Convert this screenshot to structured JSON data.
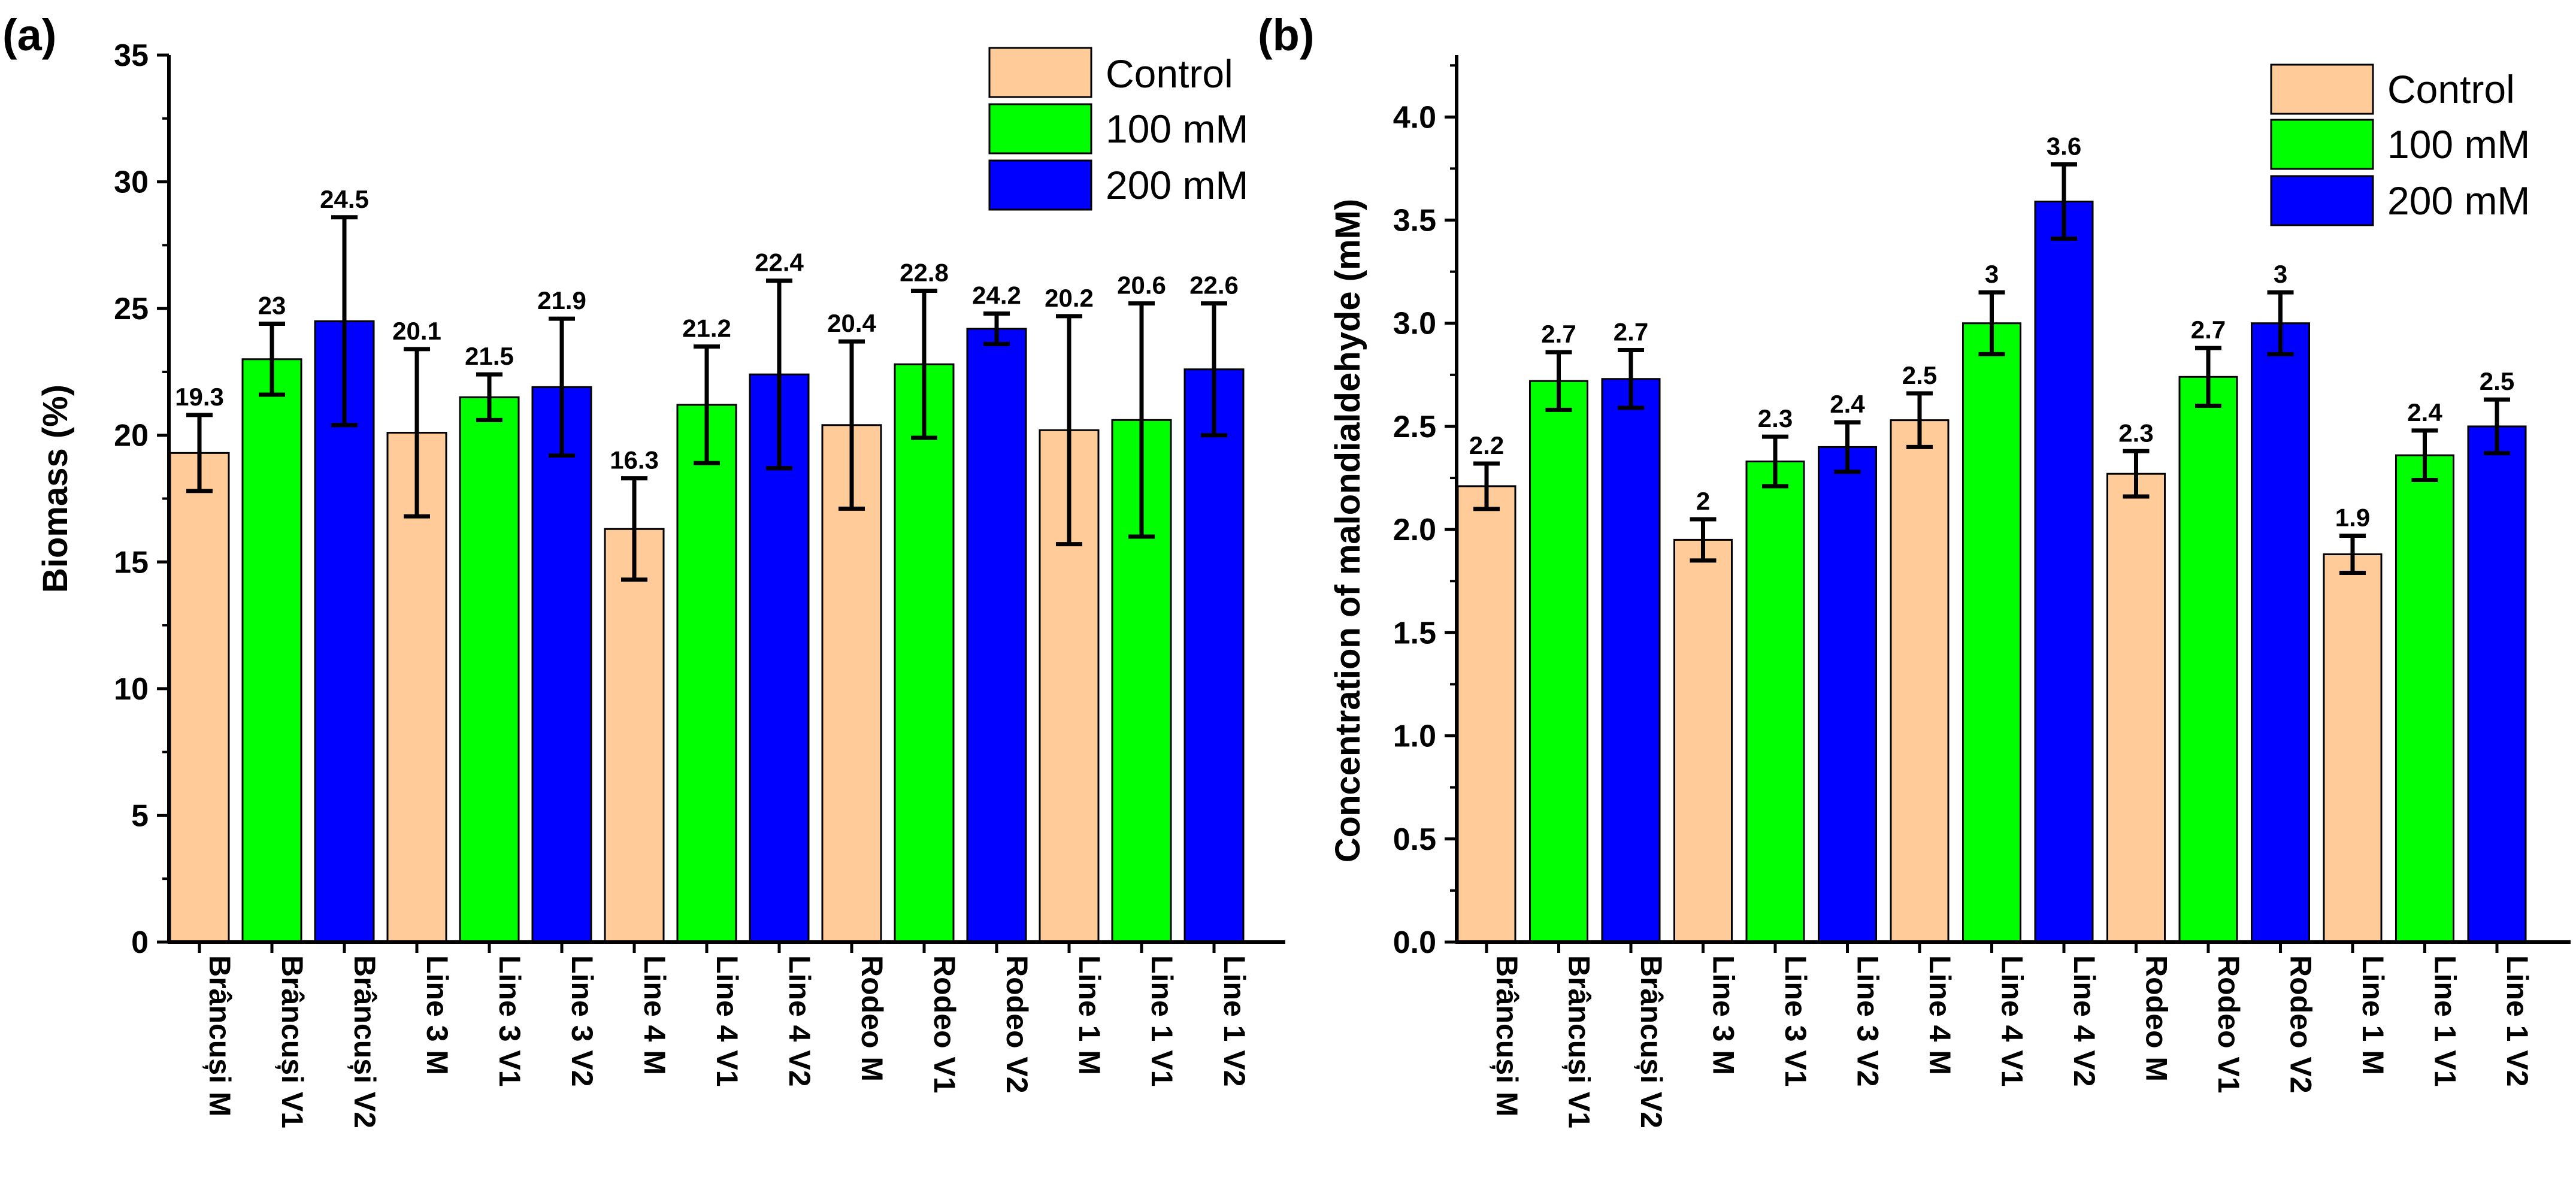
{
  "colors": {
    "control": "#FFCC99",
    "mM100": "#00FF00",
    "mM200": "#0000FF"
  },
  "chart_data": [
    {
      "panel_label": "(a)",
      "type": "bar",
      "ylabel": "Biomass (%)",
      "xlabel": "",
      "ylim": [
        0,
        35
      ],
      "yticks": [
        0,
        5,
        10,
        15,
        20,
        25,
        30,
        35
      ],
      "ytick_labels": [
        "0",
        "5",
        "10",
        "15",
        "20",
        "25",
        "30",
        "35"
      ],
      "legend": {
        "position": "top-right",
        "entries": [
          {
            "label": "Control",
            "color_key": "control"
          },
          {
            "label": "100 mM",
            "color_key": "mM100"
          },
          {
            "label": "200 mM",
            "color_key": "mM200"
          }
        ]
      },
      "bars": [
        {
          "category": "Brâncuși M",
          "group": "control",
          "value": 19.3,
          "error": 1.5,
          "label": "19.3"
        },
        {
          "category": "Brâncuși V1",
          "group": "mM100",
          "value": 23.0,
          "error": 1.4,
          "label": "23"
        },
        {
          "category": "Brâncuși V2",
          "group": "mM200",
          "value": 24.5,
          "error": 4.1,
          "label": "24.5"
        },
        {
          "category": "Line 3 M",
          "group": "control",
          "value": 20.1,
          "error": 3.3,
          "label": "20.1"
        },
        {
          "category": "Line 3 V1",
          "group": "mM100",
          "value": 21.5,
          "error": 0.9,
          "label": "21.5"
        },
        {
          "category": "Line 3 V2",
          "group": "mM200",
          "value": 21.9,
          "error": 2.7,
          "label": "21.9"
        },
        {
          "category": "Line 4 M",
          "group": "control",
          "value": 16.3,
          "error": 2.0,
          "label": "16.3"
        },
        {
          "category": "Line 4 V1",
          "group": "mM100",
          "value": 21.2,
          "error": 2.3,
          "label": "21.2"
        },
        {
          "category": "Line 4 V2",
          "group": "mM200",
          "value": 22.4,
          "error": 3.7,
          "label": "22.4"
        },
        {
          "category": "Rodeo M",
          "group": "control",
          "value": 20.4,
          "error": 3.3,
          "label": "20.4"
        },
        {
          "category": "Rodeo V1",
          "group": "mM100",
          "value": 22.8,
          "error": 2.9,
          "label": "22.8"
        },
        {
          "category": "Rodeo V2",
          "group": "mM200",
          "value": 24.2,
          "error": 0.6,
          "label": "24.2"
        },
        {
          "category": "Line 1 M",
          "group": "control",
          "value": 20.2,
          "error": 4.5,
          "label": "20.2"
        },
        {
          "category": "Line 1 V1",
          "group": "mM100",
          "value": 20.6,
          "error": 4.6,
          "label": "20.6"
        },
        {
          "category": "Line 1 V2",
          "group": "mM200",
          "value": 22.6,
          "error": 2.6,
          "label": "22.6"
        }
      ]
    },
    {
      "panel_label": "(b)",
      "type": "bar",
      "ylabel": "Concentration of malondialdehyde (mM)",
      "xlabel": "",
      "ylim": [
        0,
        4.3
      ],
      "yticks": [
        0,
        0.5,
        1.0,
        1.5,
        2.0,
        2.5,
        3.0,
        3.5,
        4.0
      ],
      "ytick_labels": [
        "0.0",
        "0.5",
        "1.0",
        "1.5",
        "2.0",
        "2.5",
        "3.0",
        "3.5",
        "4.0"
      ],
      "legend": {
        "position": "top-right",
        "entries": [
          {
            "label": "Control",
            "color_key": "control"
          },
          {
            "label": "100 mM",
            "color_key": "mM100"
          },
          {
            "label": "200 mM",
            "color_key": "mM200"
          }
        ]
      },
      "bars": [
        {
          "category": "Brâncuși M",
          "group": "control",
          "value": 2.21,
          "error": 0.11,
          "label": "2.2"
        },
        {
          "category": "Brâncuși V1",
          "group": "mM100",
          "value": 2.72,
          "error": 0.14,
          "label": "2.7"
        },
        {
          "category": "Brâncuși V2",
          "group": "mM200",
          "value": 2.73,
          "error": 0.14,
          "label": "2.7"
        },
        {
          "category": "Line 3 M",
          "group": "control",
          "value": 1.95,
          "error": 0.1,
          "label": "2"
        },
        {
          "category": "Line 3 V1",
          "group": "mM100",
          "value": 2.33,
          "error": 0.12,
          "label": "2.3"
        },
        {
          "category": "Line 3 V2",
          "group": "mM200",
          "value": 2.4,
          "error": 0.12,
          "label": "2.4"
        },
        {
          "category": "Line 4 M",
          "group": "control",
          "value": 2.53,
          "error": 0.13,
          "label": "2.5"
        },
        {
          "category": "Line 4 V1",
          "group": "mM100",
          "value": 3.0,
          "error": 0.15,
          "label": "3"
        },
        {
          "category": "Line 4 V2",
          "group": "mM200",
          "value": 3.59,
          "error": 0.18,
          "label": "3.6"
        },
        {
          "category": "Rodeo M",
          "group": "control",
          "value": 2.27,
          "error": 0.11,
          "label": "2.3"
        },
        {
          "category": "Rodeo V1",
          "group": "mM100",
          "value": 2.74,
          "error": 0.14,
          "label": "2.7"
        },
        {
          "category": "Rodeo V2",
          "group": "mM200",
          "value": 3.0,
          "error": 0.15,
          "label": "3"
        },
        {
          "category": "Line 1 M",
          "group": "control",
          "value": 1.88,
          "error": 0.09,
          "label": "1.9"
        },
        {
          "category": "Line 1 V1",
          "group": "mM100",
          "value": 2.36,
          "error": 0.12,
          "label": "2.4"
        },
        {
          "category": "Line 1 V2",
          "group": "mM200",
          "value": 2.5,
          "error": 0.13,
          "label": "2.5"
        }
      ]
    }
  ]
}
